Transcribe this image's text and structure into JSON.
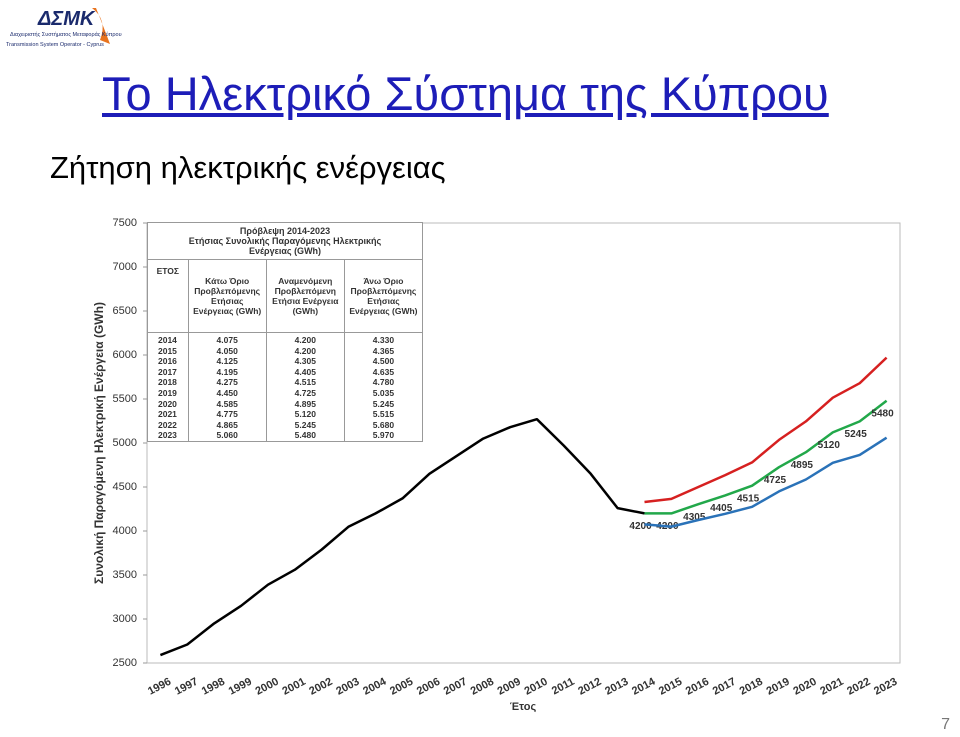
{
  "logo": {
    "mark": "ΔΣΜΚ",
    "line1": "Διαχειριστής Συστήματος Μεταφοράς Κύπρου",
    "line2": "Transmission System Operator - Cyprus"
  },
  "title": "Το Ηλεκτρικό Σύστημα της Κύπρου",
  "subtitle": "Ζήτηση ηλεκτρικής ενέργειας",
  "page_number": "7",
  "chart_data": {
    "type": "line",
    "x_label": "Έτος",
    "y_label": "Συνολική Παραγόμενη Ηλεκτρική Ενέργεια (GWh)",
    "categories": [
      "1996",
      "1997",
      "1998",
      "1999",
      "2000",
      "2001",
      "2002",
      "2003",
      "2004",
      "2005",
      "2006",
      "2007",
      "2008",
      "2009",
      "2010",
      "2011",
      "2012",
      "2013",
      "2014",
      "2015",
      "2016",
      "2017",
      "2018",
      "2019",
      "2020",
      "2021",
      "2022",
      "2023"
    ],
    "series": [
      {
        "color": "#000000",
        "values": [
          2590,
          2710,
          2950,
          3150,
          3390,
          3560,
          3790,
          4050,
          4200,
          4370,
          4650,
          4850,
          5050,
          5180,
          5270,
          4970,
          4650,
          4260,
          4200,
          null,
          null,
          null,
          null,
          null,
          null,
          null,
          null,
          null
        ]
      },
      {
        "color": "#d62020",
        "values": [
          null,
          null,
          null,
          null,
          null,
          null,
          null,
          null,
          null,
          null,
          null,
          null,
          null,
          null,
          null,
          null,
          null,
          null,
          4330,
          4365,
          4500,
          4635,
          4780,
          5035,
          5245,
          5515,
          5680,
          5970
        ]
      },
      {
        "color": "#22a84a",
        "data_labels": true,
        "values": [
          null,
          null,
          null,
          null,
          null,
          null,
          null,
          null,
          null,
          null,
          null,
          null,
          null,
          null,
          null,
          null,
          null,
          null,
          4200,
          4200,
          4305,
          4405,
          4515,
          4725,
          4895,
          5120,
          5245,
          5480
        ]
      },
      {
        "color": "#2a72b8",
        "values": [
          null,
          null,
          null,
          null,
          null,
          null,
          null,
          null,
          null,
          null,
          null,
          null,
          null,
          null,
          null,
          null,
          null,
          null,
          4075,
          4050,
          4125,
          4195,
          4275,
          4450,
          4585,
          4775,
          4865,
          5060
        ]
      }
    ],
    "ylim": [
      2500,
      7500
    ],
    "yticks": [
      2500,
      3000,
      3500,
      4000,
      4500,
      5000,
      5500,
      6000,
      6500,
      7000,
      7500
    ],
    "grid": false
  },
  "table": {
    "title": [
      "Πρόβλεψη 2014-2023",
      "Ετήσιας Συνολικής Παραγόμενης Ηλεκτρικής Ενέργειας (GWh)"
    ],
    "columns": [
      "ΕΤΟΣ",
      "Κάτω Όριο Προβλεπόμενης Ετήσιας Ενέργειας (GWh)",
      "Αναμενόμενη Προβλεπόμενη Ετήσια Ενέργεια (GWh)",
      "Άνω Όριο Προβλεπόμενης Ετήσιας Ενέργειας (GWh)"
    ],
    "rows": [
      [
        "2014",
        "4.075",
        "4.200",
        "4.330"
      ],
      [
        "2015",
        "4.050",
        "4.200",
        "4.365"
      ],
      [
        "2016",
        "4.125",
        "4.305",
        "4.500"
      ],
      [
        "2017",
        "4.195",
        "4.405",
        "4.635"
      ],
      [
        "2018",
        "4.275",
        "4.515",
        "4.780"
      ],
      [
        "2019",
        "4.450",
        "4.725",
        "5.035"
      ],
      [
        "2020",
        "4.585",
        "4.895",
        "5.245"
      ],
      [
        "2021",
        "4.775",
        "5.120",
        "5.515"
      ],
      [
        "2022",
        "4.865",
        "5.245",
        "5.680"
      ],
      [
        "2023",
        "5.060",
        "5.480",
        "5.970"
      ]
    ]
  }
}
